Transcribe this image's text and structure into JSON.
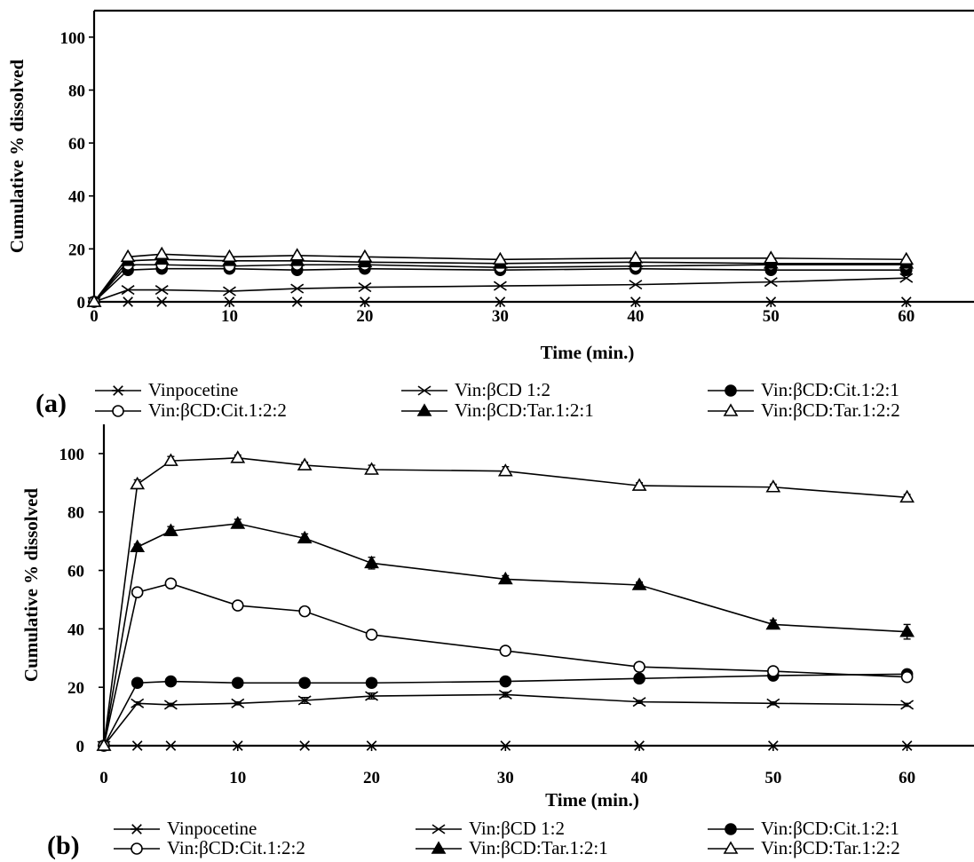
{
  "chart_data": [
    {
      "panel": "(a)",
      "type": "line",
      "xlabel": "Time (min.)",
      "ylabel": "Cumulative % dissolved",
      "xlim": [
        0,
        65
      ],
      "ylim": [
        0,
        110
      ],
      "xticks": [
        0,
        10,
        20,
        30,
        40,
        50,
        60
      ],
      "yticks": [
        0,
        20,
        40,
        60,
        80,
        100
      ],
      "grid": false,
      "legend_position": "bottom",
      "x": [
        0,
        2.5,
        5,
        10,
        15,
        20,
        30,
        40,
        50,
        60
      ],
      "series": [
        {
          "name": "Vinpocetine",
          "marker": "asterisk",
          "values": [
            0,
            0,
            0,
            0,
            0,
            0,
            0,
            0,
            0,
            0
          ]
        },
        {
          "name": "Vin:βCD 1:2",
          "marker": "cross",
          "values": [
            0,
            4.5,
            4.5,
            4,
            5,
            5.5,
            6,
            6.5,
            7.5,
            9
          ]
        },
        {
          "name": "Vin:βCD:Cit.1:2:1",
          "marker": "filled-circle",
          "values": [
            0,
            12,
            12.5,
            12.5,
            12,
            12.5,
            12,
            12.5,
            12,
            12
          ]
        },
        {
          "name": "Vin:βCD:Cit.1:2:2",
          "marker": "open-circle",
          "values": [
            0,
            14,
            14,
            13.5,
            14,
            14,
            13,
            13.5,
            14,
            14
          ]
        },
        {
          "name": "Vin:βCD:Tar.1:2:1",
          "marker": "filled-triangle",
          "values": [
            0,
            15.5,
            16,
            15.5,
            15.5,
            15,
            14.5,
            15,
            14.5,
            14.5
          ]
        },
        {
          "name": "Vin:βCD:Tar.1:2:2",
          "marker": "open-triangle",
          "values": [
            0,
            17,
            18,
            17,
            17.5,
            17,
            16,
            16.5,
            16.5,
            16
          ]
        }
      ]
    },
    {
      "panel": "(b)",
      "type": "line",
      "xlabel": "Time (min.)",
      "ylabel": "Cumulative % dissolved",
      "xlim": [
        0,
        65
      ],
      "ylim": [
        0,
        110
      ],
      "xticks": [
        0,
        10,
        20,
        30,
        40,
        50,
        60
      ],
      "yticks": [
        0,
        20,
        40,
        60,
        80,
        100
      ],
      "grid": false,
      "legend_position": "bottom",
      "x": [
        0,
        2.5,
        5,
        10,
        15,
        20,
        30,
        40,
        50,
        60
      ],
      "series": [
        {
          "name": "Vinpocetine",
          "marker": "asterisk",
          "values": [
            0,
            0,
            0,
            0,
            0,
            0,
            0,
            0,
            0,
            0
          ],
          "errors": [
            0,
            0,
            0,
            0,
            0,
            0,
            0,
            0,
            0,
            0
          ]
        },
        {
          "name": "Vin:βCD 1:2",
          "marker": "cross",
          "values": [
            0,
            14.5,
            14,
            14.5,
            15.5,
            17,
            17.5,
            15,
            14.5,
            14
          ],
          "errors": [
            0,
            0.5,
            0.5,
            0.5,
            1,
            1,
            0.8,
            0.5,
            0.5,
            0.5
          ]
        },
        {
          "name": "Vin:βCD:Cit.1:2:1",
          "marker": "filled-circle",
          "values": [
            0,
            21.5,
            22,
            21.5,
            21.5,
            21.5,
            22,
            23,
            24,
            24.5
          ],
          "errors": [
            0,
            0.8,
            0.5,
            0.5,
            0.5,
            1,
            0.8,
            0.8,
            1,
            1
          ]
        },
        {
          "name": "Vin:βCD:Cit.1:2:2",
          "marker": "open-circle",
          "values": [
            0,
            52.5,
            55.5,
            48,
            46,
            38,
            32.5,
            27,
            25.5,
            23.5
          ],
          "errors": [
            0,
            1,
            1,
            1.2,
            1,
            1.2,
            1,
            1,
            1,
            1.2
          ]
        },
        {
          "name": "Vin:βCD:Tar.1:2:1",
          "marker": "filled-triangle",
          "values": [
            0,
            68,
            73.5,
            76,
            71,
            62.5,
            57,
            55,
            41.5,
            39
          ],
          "errors": [
            0,
            1,
            1.5,
            1.5,
            1.5,
            2,
            1.2,
            1,
            1.5,
            2.5
          ]
        },
        {
          "name": "Vin:βCD:Tar.1:2:2",
          "marker": "open-triangle",
          "values": [
            0,
            89.5,
            97.5,
            98.5,
            96,
            94.5,
            94,
            89,
            88.5,
            85
          ],
          "errors": [
            0,
            1.5,
            1.5,
            1,
            1,
            1.5,
            1.5,
            1,
            1,
            1
          ]
        }
      ]
    }
  ]
}
